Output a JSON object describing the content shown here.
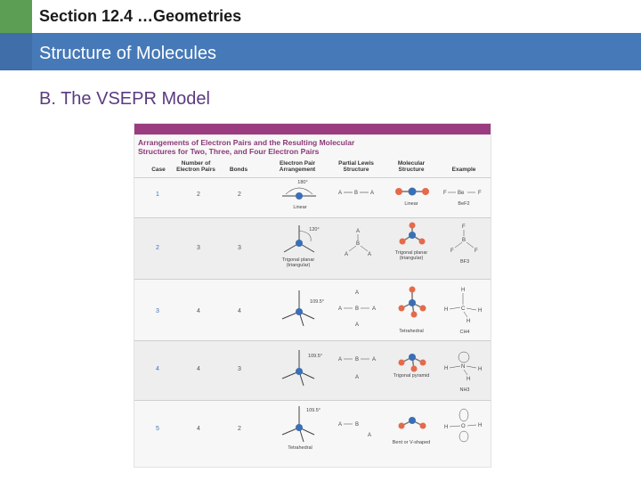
{
  "header": {
    "section_title": "Section 12.4 …Geometries",
    "subtitle": "Structure of Molecules"
  },
  "content": {
    "heading": "B. The VSEPR Model"
  },
  "table": {
    "caption_line1": "Arrangements of Electron Pairs and the Resulting Molecular",
    "caption_line2": "Structures for Two, Three, and Four Electron Pairs",
    "headers": {
      "case": "Case",
      "pairs": "Number of Electron Pairs",
      "bonds": "Bonds",
      "arrangement": "Electron Pair Arrangement",
      "lewis": "Partial Lewis Structure",
      "structure": "Molecular Structure",
      "example": "Example"
    },
    "rows": [
      {
        "case": "1",
        "pairs": "2",
        "bonds": "2",
        "angle": "180°",
        "arrangement": "Linear",
        "structure": "Linear",
        "example": "BeF2"
      },
      {
        "case": "2",
        "pairs": "3",
        "bonds": "3",
        "angle": "120°",
        "arrangement": "Trigonal planar (triangular)",
        "structure": "Trigonal planar (triangular)",
        "example": "BF3"
      },
      {
        "case": "3",
        "pairs": "4",
        "bonds": "4",
        "angle": "109.5°",
        "arrangement": "",
        "structure": "Tetrahedral",
        "example": "CH4"
      },
      {
        "case": "4",
        "pairs": "4",
        "bonds": "3",
        "angle": "109.5°",
        "arrangement": "",
        "structure": "Trigonal pyramid",
        "example": "NH3"
      },
      {
        "case": "5",
        "pairs": "4",
        "bonds": "2",
        "angle": "109.5°",
        "arrangement": "Tetrahedral",
        "structure": "Bent or V-shaped",
        "example": ""
      }
    ]
  }
}
